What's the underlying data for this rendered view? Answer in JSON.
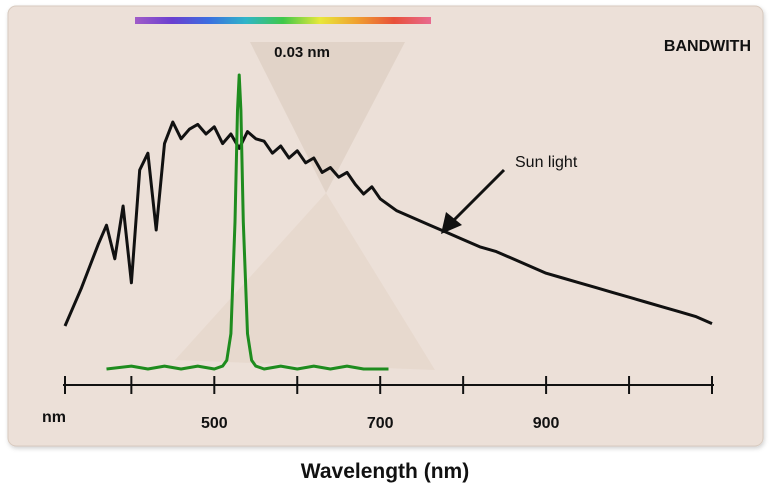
{
  "chart_data": {
    "type": "line",
    "title": "BANDWITH",
    "xlabel": "Wavelength (nm)",
    "x_unit_label": "nm",
    "xlim": [
      320,
      1100
    ],
    "ylim": [
      0,
      1
    ],
    "tick_values": [
      400,
      500,
      600,
      700,
      800,
      900,
      1000,
      1100
    ],
    "tick_labels": [
      {
        "value": 500,
        "text": "500"
      },
      {
        "value": 700,
        "text": "700"
      },
      {
        "value": 900,
        "text": "900"
      }
    ],
    "series": [
      {
        "name": "Sun light",
        "x": [
          320,
          330,
          340,
          350,
          360,
          370,
          380,
          390,
          400,
          410,
          420,
          430,
          440,
          450,
          460,
          470,
          480,
          490,
          500,
          510,
          520,
          530,
          540,
          550,
          560,
          570,
          580,
          590,
          600,
          610,
          620,
          630,
          640,
          650,
          660,
          670,
          680,
          690,
          700,
          720,
          740,
          760,
          780,
          800,
          820,
          840,
          860,
          880,
          900,
          920,
          940,
          960,
          980,
          1000,
          1020,
          1040,
          1060,
          1080,
          1100
        ],
        "y": [
          0.1,
          0.18,
          0.26,
          0.35,
          0.44,
          0.52,
          0.38,
          0.6,
          0.28,
          0.75,
          0.82,
          0.5,
          0.86,
          0.95,
          0.88,
          0.92,
          0.94,
          0.9,
          0.93,
          0.86,
          0.9,
          0.84,
          0.91,
          0.88,
          0.87,
          0.82,
          0.85,
          0.8,
          0.83,
          0.78,
          0.8,
          0.74,
          0.76,
          0.72,
          0.74,
          0.69,
          0.65,
          0.68,
          0.63,
          0.58,
          0.55,
          0.52,
          0.49,
          0.46,
          0.43,
          0.41,
          0.38,
          0.35,
          0.32,
          0.3,
          0.28,
          0.26,
          0.24,
          0.22,
          0.2,
          0.18,
          0.16,
          0.14,
          0.11
        ],
        "color": "#111111"
      },
      {
        "name": "",
        "x": [
          370,
          400,
          420,
          440,
          460,
          480,
          500,
          510,
          515,
          520,
          525,
          528,
          530,
          532,
          535,
          540,
          545,
          550,
          560,
          580,
          600,
          620,
          640,
          660,
          680,
          700,
          710
        ],
        "y": [
          0.0,
          0.01,
          0.0,
          0.01,
          0.0,
          0.01,
          0.0,
          0.01,
          0.03,
          0.12,
          0.5,
          0.88,
          1.0,
          0.88,
          0.5,
          0.12,
          0.03,
          0.01,
          0.0,
          0.01,
          0.0,
          0.01,
          0.0,
          0.01,
          0.0,
          0.0,
          0.0
        ],
        "color": "#1e8c1e"
      }
    ],
    "annotations": [
      {
        "text": "0.03 nm",
        "x": 530
      },
      {
        "text": "Sun light",
        "x": 780,
        "y": 0.55
      }
    ],
    "spectrum_bar_colors": [
      "#a05cc8",
      "#6a3fd0",
      "#3b6fe0",
      "#2fb5c8",
      "#3fc84a",
      "#e8e83a",
      "#f0a030",
      "#e8503a",
      "#e86a90"
    ],
    "panel_color": "#ece0d8",
    "grid": false,
    "legend": "none"
  }
}
